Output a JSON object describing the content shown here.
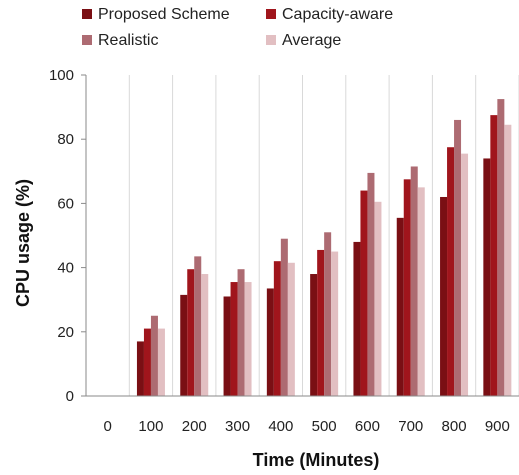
{
  "chart_data": {
    "type": "bar",
    "title": "",
    "xlabel": "Time (Minutes)",
    "ylabel": "CPU usage (%)",
    "categories": [
      "0",
      "100",
      "200",
      "300",
      "400",
      "500",
      "600",
      "700",
      "800",
      "900"
    ],
    "ylim": [
      0,
      100
    ],
    "yticks": [
      "0",
      "20",
      "40",
      "60",
      "80",
      "100"
    ],
    "grid": "vertical",
    "legend_position": "top",
    "series": [
      {
        "name": "Proposed Scheme",
        "color": "#7a0f14",
        "values": [
          0,
          17,
          31.5,
          31,
          33.5,
          38,
          48,
          55.5,
          62,
          74
        ]
      },
      {
        "name": "Capacity-aware",
        "color": "#a0151c",
        "values": [
          0,
          21,
          39.5,
          35.5,
          42,
          45.5,
          64,
          67.5,
          77.5,
          87.5
        ]
      },
      {
        "name": "Realistic",
        "color": "#ad6b72",
        "values": [
          0,
          25,
          43.5,
          39.5,
          49,
          51,
          69.5,
          71.5,
          86,
          92.5
        ]
      },
      {
        "name": "Average",
        "color": "#e2bfc2",
        "values": [
          0,
          21,
          38,
          35.5,
          41.5,
          45,
          60.5,
          65,
          75.5,
          84.5
        ]
      }
    ]
  }
}
